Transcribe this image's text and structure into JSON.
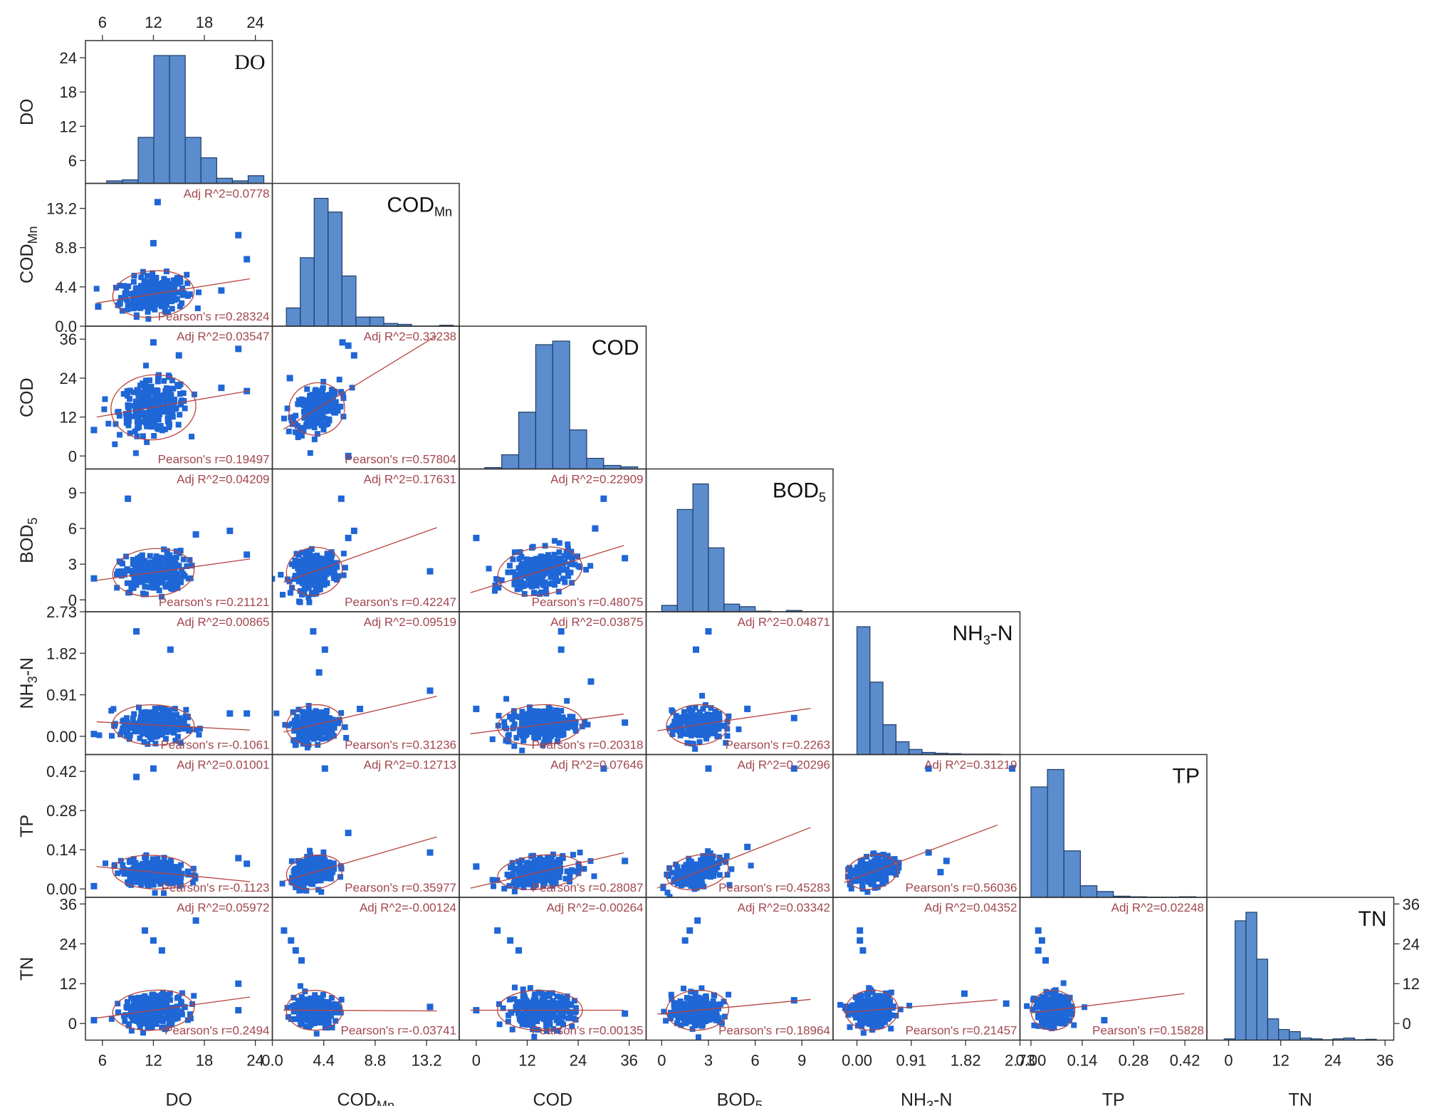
{
  "chart_data": {
    "type": "scatter",
    "title": "",
    "layout": "scatter-matrix-lower-triangle",
    "variables": [
      {
        "key": "DO",
        "label": "DO",
        "sub": "",
        "range": [
          4,
          26
        ],
        "ticks": [
          "6",
          "12",
          "18",
          "24"
        ],
        "tick_values": [
          6,
          12,
          18,
          24
        ],
        "hist_ticks": [
          "24",
          "18",
          "12",
          "6"
        ],
        "hist_tick_values": [
          24,
          18,
          12,
          6
        ],
        "hist_range": [
          2,
          27
        ],
        "hist_bins": [
          0.5,
          0.7,
          9,
          25,
          25,
          9,
          5,
          1,
          0.5,
          1.5
        ],
        "hist_bin_range": [
          6.5,
          25
        ],
        "hist_style": "serif"
      },
      {
        "key": "CODMn",
        "label": "COD",
        "sub": "Mn",
        "range": [
          0,
          16
        ],
        "ticks": [
          "0.0",
          "4.4",
          "8.8",
          "13.2"
        ],
        "tick_values": [
          0,
          4.4,
          8.8,
          13.2
        ],
        "hist_bins": [
          2,
          7.5,
          14,
          12.5,
          5.5,
          1,
          1,
          0.3,
          0.2,
          0,
          0,
          0.1
        ],
        "hist_bin_range": [
          1.2,
          15.5
        ]
      },
      {
        "key": "COD",
        "label": "COD",
        "sub": "",
        "range": [
          -4,
          40
        ],
        "ticks": [
          "0",
          "12",
          "24",
          "36"
        ],
        "tick_values": [
          0,
          12,
          24,
          36
        ],
        "hist_bins": [
          0.2,
          2,
          8,
          17.5,
          18,
          5.5,
          1.5,
          0.5,
          0.3
        ],
        "hist_bin_range": [
          2,
          38
        ]
      },
      {
        "key": "BOD5",
        "label": "BOD",
        "sub": "5",
        "range": [
          -1,
          11
        ],
        "ticks": [
          "0",
          "3",
          "6",
          "9"
        ],
        "tick_values": [
          0,
          3,
          6,
          9
        ],
        "hist_bins": [
          0.5,
          8,
          10,
          5,
          0.6,
          0.4,
          0.05,
          0,
          0.1
        ],
        "hist_bin_range": [
          0,
          9
        ]
      },
      {
        "key": "NH3N",
        "label": "NH",
        "sub": "3",
        "suffix": "-N",
        "range": [
          -0.4,
          2.73
        ],
        "ticks": [
          "0.00",
          "0.91",
          "1.82",
          "2.73"
        ],
        "tick_values": [
          0,
          0.91,
          1.82,
          2.73
        ],
        "hist_bins": [
          30,
          17,
          7,
          3,
          1.2,
          0.5,
          0.3,
          0.2,
          0.1,
          0.1,
          0.1
        ],
        "hist_bin_range": [
          0,
          2.4
        ]
      },
      {
        "key": "TP",
        "label": "TP",
        "sub": "",
        "range": [
          -0.03,
          0.48
        ],
        "ticks": [
          "0.00",
          "0.14",
          "0.28",
          "0.42"
        ],
        "tick_values": [
          0,
          0.14,
          0.28,
          0.42
        ],
        "hist_bins": [
          19,
          22,
          8,
          2,
          1,
          0.2,
          0.1,
          0.05,
          0.05,
          0.1
        ],
        "hist_bin_range": [
          0,
          0.45
        ]
      },
      {
        "key": "TN",
        "label": "TN",
        "sub": "",
        "range": [
          -5,
          38
        ],
        "ticks": [
          "0",
          "12",
          "24",
          "36"
        ],
        "tick_values": [
          0,
          12,
          24,
          36
        ],
        "hist_ticks": [
          "36",
          "24",
          "12",
          "0"
        ],
        "hist_tick_values": [
          36,
          24,
          12,
          0
        ],
        "hist_bins": [
          0.3,
          28,
          30,
          19,
          5,
          2.5,
          2,
          0.5,
          0.3,
          0.1,
          0.3,
          0.5,
          0.1,
          0.2
        ],
        "hist_bin_range": [
          -1,
          34
        ]
      }
    ],
    "pairs": [
      {
        "row": 1,
        "col": 0,
        "adj_r2": "Adj R^2=0.0778",
        "pearson": "Pearson's r=0.28324",
        "cx": 12,
        "cy": 3.6,
        "sx": 2.4,
        "sy": 1.3,
        "slope": 0.15,
        "extra": [
          [
            12.5,
            13.9
          ],
          [
            12,
            9.3
          ],
          [
            23,
            7.5
          ],
          [
            22,
            10.2
          ],
          [
            5.5,
            2.2
          ],
          [
            20,
            4
          ]
        ]
      },
      {
        "row": 2,
        "col": 0,
        "adj_r2": "Adj R^2=0.03547",
        "pearson": "Pearson's r=0.19497",
        "cx": 12,
        "cy": 15,
        "sx": 2.5,
        "sy": 5,
        "slope": 0.45,
        "extra": [
          [
            12,
            35
          ],
          [
            15,
            31
          ],
          [
            22,
            33
          ],
          [
            23,
            20
          ],
          [
            5,
            8
          ],
          [
            20,
            21
          ]
        ]
      },
      {
        "row": 2,
        "col": 1,
        "adj_r2": "Adj R^2=0.33238",
        "pearson": "Pearson's r=0.57804",
        "cx": 3.8,
        "cy": 14.5,
        "sx": 1.2,
        "sy": 4,
        "slope": 2.2,
        "extra": [
          [
            6,
            35
          ],
          [
            6.5,
            34
          ],
          [
            7,
            31
          ],
          [
            1.5,
            24
          ],
          [
            6.5,
            0
          ]
        ]
      },
      {
        "row": 3,
        "col": 0,
        "adj_r2": "Adj R^2=0.04209",
        "pearson": "Pearson's r=0.21121",
        "cx": 12,
        "cy": 2.3,
        "sx": 2.4,
        "sy": 1,
        "slope": 0.1,
        "extra": [
          [
            9,
            8.5
          ],
          [
            21,
            5.8
          ],
          [
            23,
            3.8
          ],
          [
            17,
            5.5
          ],
          [
            5,
            1.8
          ]
        ]
      },
      {
        "row": 3,
        "col": 1,
        "adj_r2": "Adj R^2=0.17631",
        "pearson": "Pearson's r=0.42247",
        "cx": 3.6,
        "cy": 2.4,
        "sx": 1.2,
        "sy": 1,
        "slope": 0.35,
        "extra": [
          [
            5.9,
            8.5
          ],
          [
            13.5,
            2.4
          ],
          [
            7,
            5.8
          ],
          [
            6.5,
            5.2
          ]
        ]
      },
      {
        "row": 3,
        "col": 2,
        "adj_r2": "Adj R^2=0.22909",
        "pearson": "Pearson's r=0.48075",
        "cx": 15,
        "cy": 2.4,
        "sx": 5,
        "sy": 1,
        "slope": 0.11,
        "extra": [
          [
            30,
            8.5
          ],
          [
            0,
            5.2
          ],
          [
            35,
            3.5
          ],
          [
            28,
            6
          ]
        ]
      },
      {
        "row": 4,
        "col": 0,
        "adj_r2": "Adj R^2=0.00865",
        "pearson": "Pearson's r=-0.1061",
        "cx": 12,
        "cy": 0.25,
        "sx": 2.4,
        "sy": 0.22,
        "slope": -0.01,
        "extra": [
          [
            10,
            2.3
          ],
          [
            14,
            1.9
          ],
          [
            21,
            0.5
          ],
          [
            23,
            0.5
          ],
          [
            5,
            0.05
          ]
        ]
      },
      {
        "row": 4,
        "col": 1,
        "adj_r2": "Adj R^2=0.09519",
        "pearson": "Pearson's r=0.31236",
        "cx": 3.6,
        "cy": 0.25,
        "sx": 1.2,
        "sy": 0.22,
        "slope": 0.06,
        "extra": [
          [
            3.5,
            2.3
          ],
          [
            4.5,
            1.9
          ],
          [
            7.5,
            0.6
          ],
          [
            4,
            1.4
          ],
          [
            13.5,
            1
          ]
        ]
      },
      {
        "row": 4,
        "col": 2,
        "adj_r2": "Adj R^2=0.03875",
        "pearson": "Pearson's r=0.20318",
        "cx": 15,
        "cy": 0.25,
        "sx": 5,
        "sy": 0.22,
        "slope": 0.012,
        "extra": [
          [
            20,
            2.3
          ],
          [
            20,
            1.9
          ],
          [
            0,
            0.6
          ],
          [
            35,
            0.3
          ],
          [
            27,
            1.2
          ]
        ]
      },
      {
        "row": 4,
        "col": 3,
        "adj_r2": "Adj R^2=0.04871",
        "pearson": "Pearson's r=0.2263",
        "cx": 2.3,
        "cy": 0.25,
        "sx": 1,
        "sy": 0.22,
        "slope": 0.05,
        "extra": [
          [
            3,
            2.3
          ],
          [
            2.2,
            1.9
          ],
          [
            8.5,
            0.4
          ],
          [
            5.5,
            0.6
          ]
        ]
      },
      {
        "row": 5,
        "col": 0,
        "adj_r2": "Adj R^2=0.01001",
        "pearson": "Pearson's r=-0.1123",
        "cx": 12,
        "cy": 0.06,
        "sx": 2.4,
        "sy": 0.03,
        "slope": -0.003,
        "extra": [
          [
            10,
            0.4
          ],
          [
            12,
            0.43
          ],
          [
            22,
            0.11
          ],
          [
            23,
            0.09
          ],
          [
            5,
            0.01
          ]
        ]
      },
      {
        "row": 5,
        "col": 1,
        "adj_r2": "Adj R^2=0.12713",
        "pearson": "Pearson's r=0.35977",
        "cx": 3.6,
        "cy": 0.06,
        "sx": 1.2,
        "sy": 0.03,
        "slope": 0.012,
        "extra": [
          [
            4.5,
            0.43
          ],
          [
            13.5,
            0.13
          ],
          [
            6.5,
            0.2
          ]
        ]
      },
      {
        "row": 5,
        "col": 2,
        "adj_r2": "Adj R^2=0.07646",
        "pearson": "Pearson's r=0.28087",
        "cx": 15,
        "cy": 0.06,
        "sx": 5,
        "sy": 0.03,
        "slope": 0.0035,
        "extra": [
          [
            30,
            0.43
          ],
          [
            0,
            0.08
          ],
          [
            35,
            0.1
          ]
        ]
      },
      {
        "row": 5,
        "col": 3,
        "adj_r2": "Adj R^2=0.20296",
        "pearson": "Pearson's r=0.45283",
        "cx": 2.3,
        "cy": 0.06,
        "sx": 1,
        "sy": 0.03,
        "slope": 0.022,
        "extra": [
          [
            3,
            0.43
          ],
          [
            8.5,
            0.43
          ],
          [
            5.5,
            0.15
          ]
        ]
      },
      {
        "row": 5,
        "col": 4,
        "adj_r2": "Adj R^2=0.31219",
        "pearson": "Pearson's r=0.56036",
        "cx": 0.25,
        "cy": 0.06,
        "sx": 0.22,
        "sy": 0.03,
        "slope": 0.08,
        "extra": [
          [
            1.2,
            0.43
          ],
          [
            2.6,
            0.43
          ],
          [
            1.5,
            0.1
          ],
          [
            1.2,
            0.13
          ],
          [
            1.4,
            0.06
          ]
        ]
      },
      {
        "row": 6,
        "col": 0,
        "adj_r2": "Adj R^2=0.05972",
        "pearson": "Pearson's r=0.2494",
        "cx": 12,
        "cy": 4,
        "sx": 2.4,
        "sy": 3,
        "slope": 0.35,
        "extra": [
          [
            11,
            28
          ],
          [
            12,
            25
          ],
          [
            13,
            22
          ],
          [
            17,
            31
          ],
          [
            22,
            12
          ],
          [
            22,
            4
          ],
          [
            5,
            1
          ]
        ]
      },
      {
        "row": 6,
        "col": 1,
        "adj_r2": "Adj R^2=-0.00124",
        "pearson": "Pearson's r=-0.03741",
        "cx": 3.6,
        "cy": 4,
        "sx": 1.2,
        "sy": 3,
        "slope": -0.02,
        "extra": [
          [
            1,
            28
          ],
          [
            1.6,
            25
          ],
          [
            2,
            22
          ],
          [
            2.5,
            19
          ],
          [
            13.5,
            5
          ]
        ]
      },
      {
        "row": 6,
        "col": 2,
        "adj_r2": "Adj R^2=-0.00264",
        "pearson": "Pearson's r=0.00135",
        "cx": 15,
        "cy": 4,
        "sx": 5,
        "sy": 3,
        "slope": 0,
        "extra": [
          [
            5,
            28
          ],
          [
            8,
            25
          ],
          [
            10,
            22
          ],
          [
            35,
            3
          ],
          [
            0,
            4
          ]
        ]
      },
      {
        "row": 6,
        "col": 3,
        "adj_r2": "Adj R^2=0.03342",
        "pearson": "Pearson's r=0.18964",
        "cx": 2.3,
        "cy": 4,
        "sx": 1,
        "sy": 3,
        "slope": 0.45,
        "extra": [
          [
            1.8,
            28
          ],
          [
            2.3,
            31
          ],
          [
            1.5,
            25
          ],
          [
            8.5,
            7
          ]
        ]
      },
      {
        "row": 6,
        "col": 4,
        "adj_r2": "Adj R^2=0.04352",
        "pearson": "Pearson's r=0.21457",
        "cx": 0.25,
        "cy": 4,
        "sx": 0.22,
        "sy": 3,
        "slope": 1.5,
        "extra": [
          [
            0.05,
            28
          ],
          [
            0.05,
            25
          ],
          [
            0.1,
            22
          ],
          [
            2.5,
            6
          ],
          [
            1.8,
            9
          ]
        ]
      },
      {
        "row": 6,
        "col": 5,
        "adj_r2": "Adj R^2=0.02248",
        "pearson": "Pearson's r=0.15828",
        "cx": 0.06,
        "cy": 4,
        "sx": 0.03,
        "sy": 3,
        "slope": 14,
        "extra": [
          [
            0.02,
            28
          ],
          [
            0.03,
            25
          ],
          [
            0.02,
            22
          ],
          [
            0.04,
            19
          ],
          [
            0.2,
            1
          ]
        ]
      }
    ],
    "xlabels": [
      {
        "label": "DO",
        "sub": "",
        "suffix": ""
      },
      {
        "label": "COD",
        "sub": "Mn",
        "suffix": ""
      },
      {
        "label": "COD",
        "sub": "",
        "suffix": ""
      },
      {
        "label": "BOD",
        "sub": "5",
        "suffix": ""
      },
      {
        "label": "NH",
        "sub": "3",
        "suffix": "-N"
      },
      {
        "label": "TP",
        "sub": "",
        "suffix": ""
      },
      {
        "label": "TN",
        "sub": "",
        "suffix": ""
      }
    ],
    "colors": {
      "scatter": "#1f66d6",
      "hist_fill": "#5b8ccd",
      "hist_edge": "#1f3d66",
      "fit_line": "#b5453f",
      "ellipse": "#b5453f",
      "stat_text": "#a2474f",
      "frame": "#333333"
    }
  }
}
